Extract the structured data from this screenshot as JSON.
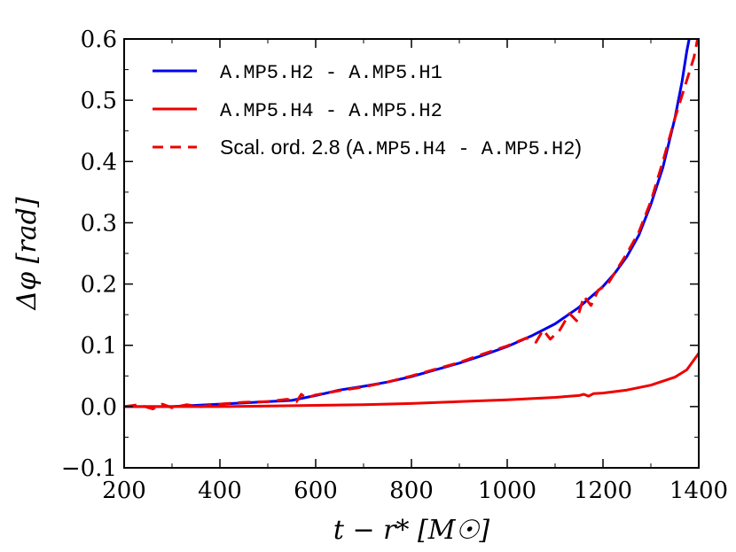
{
  "chart_data": {
    "type": "line",
    "title": "",
    "xlabel": "t − r* [M☉]",
    "ylabel": "Δφ [rad]",
    "xlim": [
      200,
      1400
    ],
    "ylim": [
      -0.1,
      0.6
    ],
    "xticks": [
      200,
      400,
      600,
      800,
      1000,
      1200,
      1400
    ],
    "yticks": [
      -0.1,
      0.0,
      0.1,
      0.2,
      0.3,
      0.4,
      0.5,
      0.6
    ],
    "xtick_labels": [
      "200",
      "400",
      "600",
      "800",
      "1000",
      "1200",
      "1400"
    ],
    "ytick_labels": [
      "−0.1",
      "0.0",
      "0.1",
      "0.2",
      "0.3",
      "0.4",
      "0.5",
      "0.6"
    ],
    "legend_position": "top-left",
    "series": [
      {
        "name": "A.MP5.H2 - A.MP5.H1",
        "color": "#0000ee",
        "style": "solid",
        "x": [
          200,
          250,
          300,
          350,
          400,
          450,
          500,
          550,
          600,
          650,
          700,
          750,
          800,
          850,
          900,
          950,
          1000,
          1050,
          1100,
          1150,
          1200,
          1225,
          1250,
          1275,
          1300,
          1325,
          1350,
          1365,
          1375,
          1385
        ],
        "y": [
          0.0,
          0.0,
          0.0,
          0.002,
          0.004,
          0.006,
          0.008,
          0.01,
          0.018,
          0.027,
          0.033,
          0.04,
          0.049,
          0.06,
          0.071,
          0.084,
          0.098,
          0.115,
          0.135,
          0.162,
          0.196,
          0.218,
          0.245,
          0.28,
          0.33,
          0.39,
          0.47,
          0.53,
          0.58,
          0.62
        ]
      },
      {
        "name": "A.MP5.H4 - A.MP5.H2",
        "color": "#ee0000",
        "style": "solid",
        "x": [
          200,
          300,
          400,
          500,
          600,
          700,
          800,
          900,
          1000,
          1050,
          1100,
          1150,
          1160,
          1170,
          1180,
          1200,
          1250,
          1300,
          1350,
          1375,
          1400
        ],
        "y": [
          0.0,
          0.0,
          0.0,
          0.001,
          0.002,
          0.003,
          0.005,
          0.008,
          0.011,
          0.013,
          0.015,
          0.018,
          0.02,
          0.017,
          0.021,
          0.022,
          0.027,
          0.035,
          0.048,
          0.06,
          0.087
        ]
      },
      {
        "name": "Scal. ord. 2.8 (A.MP5.H4 - A.MP5.H2)",
        "color": "#ee0000",
        "style": "dashed",
        "x": [
          200,
          230,
          260,
          280,
          300,
          330,
          360,
          400,
          450,
          500,
          540,
          560,
          570,
          580,
          600,
          650,
          700,
          750,
          800,
          850,
          900,
          950,
          1000,
          1040,
          1060,
          1075,
          1090,
          1110,
          1130,
          1145,
          1160,
          1175,
          1190,
          1210,
          1250,
          1275,
          1300,
          1325,
          1350,
          1370,
          1390,
          1400
        ],
        "y": [
          0.0,
          0.003,
          -0.004,
          0.004,
          -0.002,
          0.003,
          0.0,
          0.004,
          0.007,
          0.008,
          0.012,
          0.008,
          0.02,
          0.014,
          0.019,
          0.026,
          0.032,
          0.04,
          0.05,
          0.061,
          0.072,
          0.086,
          0.099,
          0.112,
          0.105,
          0.125,
          0.11,
          0.125,
          0.152,
          0.14,
          0.18,
          0.165,
          0.19,
          0.2,
          0.25,
          0.285,
          0.335,
          0.4,
          0.47,
          0.52,
          0.57,
          0.61
        ]
      }
    ]
  }
}
